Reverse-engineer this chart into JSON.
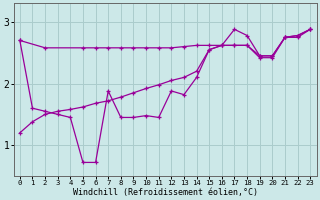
{
  "xlabel": "Windchill (Refroidissement éolien,°C)",
  "bg_color": "#cce8e8",
  "line_color": "#990099",
  "grid_color": "#aacccc",
  "xlim": [
    -0.5,
    23.5
  ],
  "ylim": [
    0.5,
    3.3
  ],
  "yticks": [
    1,
    2,
    3
  ],
  "xticks": [
    0,
    1,
    2,
    3,
    4,
    5,
    6,
    7,
    8,
    9,
    10,
    11,
    12,
    13,
    14,
    15,
    16,
    17,
    18,
    19,
    20,
    21,
    22,
    23
  ],
  "series1_x": [
    0,
    1,
    2,
    3,
    4,
    5,
    6,
    7,
    8,
    9,
    10,
    11,
    12,
    13,
    14,
    15,
    16,
    17,
    18,
    19,
    20,
    21,
    22,
    23
  ],
  "series1_y": [
    2.7,
    1.6,
    1.55,
    1.5,
    1.45,
    0.72,
    0.72,
    1.88,
    1.45,
    1.45,
    1.48,
    1.45,
    1.88,
    1.82,
    2.1,
    2.55,
    2.62,
    2.88,
    2.78,
    2.45,
    2.45,
    2.75,
    2.78,
    2.88
  ],
  "series2_x": [
    0,
    2,
    5,
    6,
    7,
    8,
    9,
    10,
    11,
    12,
    13,
    14,
    15,
    16,
    17,
    18,
    19,
    20,
    21,
    22,
    23
  ],
  "series2_y": [
    2.7,
    2.58,
    2.58,
    2.58,
    2.58,
    2.58,
    2.58,
    2.58,
    2.58,
    2.58,
    2.6,
    2.62,
    2.62,
    2.62,
    2.62,
    2.62,
    2.45,
    2.45,
    2.75,
    2.78,
    2.88
  ],
  "series3_x": [
    0,
    1,
    2,
    3,
    4,
    5,
    6,
    7,
    8,
    9,
    10,
    11,
    12,
    13,
    14,
    15,
    16,
    17,
    18,
    19,
    20,
    21,
    22,
    23
  ],
  "series3_y": [
    1.2,
    1.38,
    1.5,
    1.55,
    1.58,
    1.62,
    1.68,
    1.72,
    1.78,
    1.85,
    1.92,
    1.98,
    2.05,
    2.1,
    2.2,
    2.55,
    2.62,
    2.62,
    2.62,
    2.42,
    2.42,
    2.75,
    2.75,
    2.88
  ]
}
